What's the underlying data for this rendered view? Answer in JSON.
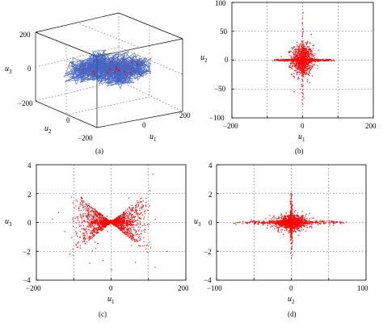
{
  "chart_data": [
    {
      "panel": "a",
      "type": "line3d",
      "caption": "(a)",
      "xlabel": "u",
      "xlabel_sub": "1",
      "ylabel": "u",
      "ylabel_sub": "2",
      "zlabel": "u",
      "zlabel_sub": "3",
      "xlim": [
        -200,
        200
      ],
      "ylim": [
        -200,
        200
      ],
      "zlim": [
        -200,
        200
      ],
      "xticks": [
        "0",
        "200"
      ],
      "yticks": [
        "0",
        "−200"
      ],
      "zticks": [
        "200",
        "0",
        "−200"
      ],
      "grid": true,
      "series": [
        {
          "color": "#3355bb",
          "style": "dense trajectory",
          "x_range": [
            -150,
            150
          ],
          "y_range": [
            -120,
            120
          ],
          "z_range": [
            -60,
            60
          ]
        },
        {
          "color": "#ff0000",
          "style": "sparse markers",
          "x_range": [
            -100,
            100
          ],
          "y_range": [
            -80,
            80
          ],
          "z_range": [
            -30,
            30
          ]
        }
      ]
    },
    {
      "panel": "b",
      "type": "scatter",
      "caption": "(b)",
      "xlabel": "u",
      "xlabel_sub": "1",
      "ylabel": "u",
      "ylabel_sub": "2",
      "xlim": [
        -200,
        200
      ],
      "ylim": [
        -100,
        100
      ],
      "xticks": [
        "−200",
        "0",
        "200"
      ],
      "yticks": [
        "100",
        "50",
        "0",
        "−50",
        "−100"
      ],
      "grid": true,
      "color": "#ff0000",
      "clusters": [
        {
          "shape": "gaussian blob",
          "center": [
            0,
            0
          ],
          "spread": [
            15,
            13
          ],
          "count": 900
        },
        {
          "shape": "horizontal band",
          "x_extent": 95,
          "y_spread": 0.8,
          "count": 600
        },
        {
          "shape": "vertical spike",
          "y_extent": 90,
          "x_spread": 1.5,
          "count": 150
        }
      ]
    },
    {
      "panel": "c",
      "type": "scatter",
      "caption": "(c)",
      "xlabel": "u",
      "xlabel_sub": "1",
      "ylabel": "u",
      "ylabel_sub": "3",
      "xlim": [
        -200,
        200
      ],
      "ylim": [
        -4,
        4
      ],
      "xticks": [
        "−200",
        "0",
        "200"
      ],
      "yticks": [
        "4",
        "2",
        "0",
        "−2",
        "−4"
      ],
      "grid": true,
      "color": "#ff0000",
      "clusters": [
        {
          "shape": "bow-tie",
          "x_extent": 110,
          "slope": 0.022,
          "count": 1500
        },
        {
          "shape": "horizontal band",
          "x_extent": 70,
          "y_spread": 0.06,
          "count": 300
        },
        {
          "shape": "outliers",
          "x_extent": 170,
          "y_extent": 3.5,
          "count": 25
        }
      ]
    },
    {
      "panel": "d",
      "type": "scatter",
      "caption": "(d)",
      "xlabel": "u",
      "xlabel_sub": "2",
      "ylabel": "u",
      "ylabel_sub": "3",
      "xlim": [
        -100,
        100
      ],
      "ylim": [
        -4,
        4
      ],
      "xticks": [
        "−100",
        "0",
        "100"
      ],
      "yticks": [
        "4",
        "2",
        "0",
        "−2",
        "−4"
      ],
      "grid": true,
      "color": "#ff0000",
      "clusters": [
        {
          "shape": "gaussian blob",
          "center": [
            0,
            0
          ],
          "spread": [
            10,
            0.25
          ],
          "count": 900
        },
        {
          "shape": "horizontal band",
          "x_extent": 80,
          "y_spread": 0.07,
          "count": 400
        },
        {
          "shape": "vertical spike",
          "y_extent": 2.5,
          "x_spread": 0.8,
          "count": 300
        }
      ]
    }
  ]
}
